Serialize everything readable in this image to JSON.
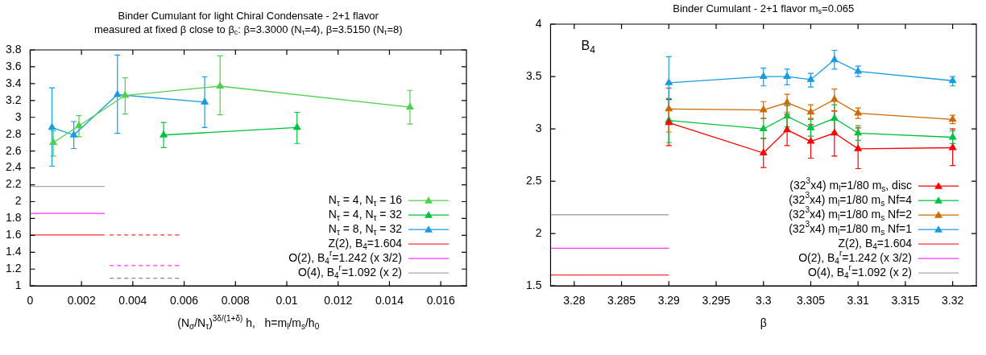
{
  "chart_data": [
    {
      "type": "line",
      "title": "Binder Cumulant for light Chiral Condensate - 2+1 flavor",
      "subtitle": "measured at fixed β close to β$_{c}$: β=3.3000 (N$_{τ}$=4), β=3.5150 (N$_{τ}$=8)",
      "xlabel": "(N$_{σ}$/N$_{τ}$)$^{3δ/(1+δ)}$ h,   h=m$_{l}$/m$_{s}$/h$_{0}$",
      "xlim": [
        0,
        0.017
      ],
      "xticks": [
        0,
        0.002,
        0.004,
        0.006,
        0.008,
        0.01,
        0.012,
        0.014,
        0.016
      ],
      "ylim": [
        1,
        3.8
      ],
      "yticks": [
        1,
        1.2,
        1.4,
        1.6,
        1.8,
        2,
        2.2,
        2.4,
        2.6,
        2.8,
        3,
        3.2,
        3.4,
        3.6,
        3.8
      ],
      "marker": "triangle",
      "legend": "bottom right",
      "series": [
        {
          "name": "N$_{τ}$ = 4, N$_{τ}$ = 16",
          "color": "#4fcf4f",
          "x": [
            0.0009,
            0.0019,
            0.0037,
            0.0074,
            0.0148
          ],
          "values": [
            2.7,
            2.9,
            3.26,
            3.37,
            3.12
          ],
          "errors": [
            [
              2.54,
              2.84
            ],
            [
              2.77,
              3.02
            ],
            [
              3.04,
              3.47
            ],
            [
              3.03,
              3.73
            ],
            [
              2.92,
              3.32
            ]
          ]
        },
        {
          "name": "N$_{τ}$ = 4, N$_{τ}$ = 32",
          "color": "#00c040",
          "x": [
            0.0052,
            0.0104
          ],
          "values": [
            2.79,
            2.88
          ],
          "errors": [
            [
              2.64,
              2.94
            ],
            [
              2.69,
              3.06
            ]
          ]
        },
        {
          "name": "N$_{τ}$ = 8, N$_{τ}$ = 32",
          "color": "#1a9be0",
          "x": [
            0.00085,
            0.0017,
            0.0034,
            0.0068
          ],
          "values": [
            2.88,
            2.79,
            3.27,
            3.18
          ],
          "errors": [
            [
              2.42,
              3.35
            ],
            [
              2.63,
              2.95
            ],
            [
              2.81,
              3.74
            ],
            [
              2.88,
              3.48
            ]
          ]
        },
        {
          "name": "Z(2), B$_{4}$=1.604",
          "color": "#ff3030",
          "marker": "none",
          "x": [
            0,
            0.0029
          ],
          "values": [
            1.604,
            1.604
          ]
        },
        {
          "name": "O(2), B$_{4}$$^{r}$=1.242 (x 3/2)",
          "color": "#ff33ff",
          "marker": "none",
          "x": [
            0,
            0.0029
          ],
          "values": [
            1.86,
            1.86
          ]
        },
        {
          "name": "O(4), B$_{4}$$^{r}$=1.092 (x 2)",
          "color": "#a8a8a8",
          "marker": "none",
          "x": [
            0,
            0.0029
          ],
          "values": [
            2.18,
            2.18
          ]
        },
        {
          "color": "#ff3030",
          "marker": "none",
          "line_style": "dashed",
          "x": [
            0.0031,
            0.0058
          ],
          "values": [
            1.604,
            1.604
          ]
        },
        {
          "color": "#ff33ff",
          "marker": "none",
          "line_style": "dashed",
          "x": [
            0.0031,
            0.0058
          ],
          "values": [
            1.242,
            1.242
          ]
        },
        {
          "color": "#888888",
          "marker": "none",
          "line_style": "dashed",
          "x": [
            0.0031,
            0.0058
          ],
          "values": [
            1.092,
            1.092
          ]
        }
      ]
    },
    {
      "type": "line",
      "title": "Binder Cumulant - 2+1 flavor m$_{s}$=0.065",
      "xlabel": "β",
      "ylabel": "B$_{4}$",
      "xlim": [
        3.2775,
        3.3225
      ],
      "xticks": [
        3.28,
        3.285,
        3.29,
        3.295,
        3.3,
        3.305,
        3.31,
        3.315,
        3.32
      ],
      "ylim": [
        1.5,
        4
      ],
      "yticks": [
        1.5,
        2,
        2.5,
        3,
        3.5,
        4
      ],
      "marker": "triangle",
      "legend": "bottom right",
      "series": [
        {
          "name": "(32$^{3}$x4) m$_{l}$=1/80 m$_{s}$, disc",
          "color": "#ff0000",
          "x": [
            3.29,
            3.3,
            3.3025,
            3.305,
            3.3075,
            3.31,
            3.32
          ],
          "values": [
            3.06,
            2.77,
            2.99,
            2.88,
            2.96,
            2.81,
            2.82
          ],
          "errors": [
            [
              2.84,
              3.28
            ],
            [
              2.63,
              2.91
            ],
            [
              2.84,
              3.14
            ],
            [
              2.72,
              3.04
            ],
            [
              2.74,
              3.17
            ],
            [
              2.62,
              3.01
            ],
            [
              2.65,
              3.0
            ]
          ]
        },
        {
          "name": "(32$^{3}$x4) m$_{l}$=1/80 m$_{s}$ Nf=4",
          "color": "#00c040",
          "x": [
            3.29,
            3.3,
            3.3025,
            3.305,
            3.3075,
            3.31,
            3.32
          ],
          "values": [
            3.08,
            3.0,
            3.12,
            3.01,
            3.1,
            2.96,
            2.92
          ],
          "errors": [
            [
              2.87,
              3.29
            ],
            [
              2.91,
              3.1
            ],
            [
              3.02,
              3.22
            ],
            [
              2.93,
              3.1
            ],
            [
              2.97,
              3.23
            ],
            [
              2.89,
              3.03
            ],
            [
              2.86,
              2.98
            ]
          ]
        },
        {
          "name": "(32$^{3}$x4) m$_{l}$=1/80 m$_{s}$ Nf=2",
          "color": "#cc6a00",
          "x": [
            3.29,
            3.3,
            3.3025,
            3.305,
            3.3075,
            3.31,
            3.32
          ],
          "values": [
            3.19,
            3.18,
            3.25,
            3.16,
            3.28,
            3.15,
            3.09
          ],
          "errors": [
            [
              2.97,
              3.39
            ],
            [
              3.1,
              3.26
            ],
            [
              3.16,
              3.33
            ],
            [
              3.09,
              3.23
            ],
            [
              3.17,
              3.38
            ],
            [
              3.1,
              3.2
            ],
            [
              3.05,
              3.13
            ]
          ]
        },
        {
          "name": "(32$^{3}$x4) m$_{l}$=1/80 m$_{s}$ Nf=1",
          "color": "#1a9be0",
          "x": [
            3.29,
            3.3,
            3.3025,
            3.305,
            3.3075,
            3.31,
            3.32
          ],
          "values": [
            3.44,
            3.5,
            3.5,
            3.47,
            3.66,
            3.55,
            3.46
          ],
          "errors": [
            [
              3.19,
              3.69
            ],
            [
              3.41,
              3.58
            ],
            [
              3.42,
              3.57
            ],
            [
              3.4,
              3.53
            ],
            [
              3.57,
              3.75
            ],
            [
              3.5,
              3.6
            ],
            [
              3.41,
              3.5
            ]
          ]
        },
        {
          "name": "Z(2), B$_{4}$=1.604",
          "color": "#ff3030",
          "marker": "none",
          "x": [
            3.2775,
            3.29
          ],
          "values": [
            1.604,
            1.604
          ]
        },
        {
          "name": "O(2), B$_{4}$$^{r}$=1.242 (x 3/2)",
          "color": "#ff33ff",
          "marker": "none",
          "x": [
            3.2775,
            3.29
          ],
          "values": [
            1.86,
            1.86
          ]
        },
        {
          "name": "O(4), B$_{4}$$^{r}$=1.092 (x 2)",
          "color": "#a8a8a8",
          "marker": "none",
          "x": [
            3.2775,
            3.29
          ],
          "values": [
            2.18,
            2.18
          ]
        }
      ]
    }
  ]
}
